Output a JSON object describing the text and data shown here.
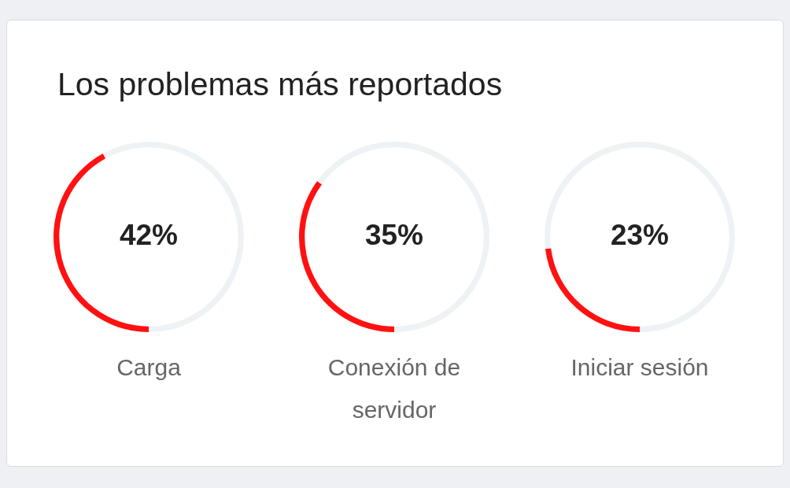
{
  "chart_data": [
    {
      "type": "donut",
      "title": "Los problemas más reportados",
      "categories": [
        "Carga",
        null
      ],
      "values": [
        42,
        58
      ],
      "colors": [
        "#ff1111",
        "#eef2f5"
      ],
      "annotations": [
        "42%"
      ]
    },
    {
      "type": "donut",
      "categories": [
        "Conexión de servidor",
        null
      ],
      "values": [
        35,
        65
      ],
      "colors": [
        "#ff1111",
        "#eef2f5"
      ],
      "annotations": [
        "35%"
      ]
    },
    {
      "type": "donut",
      "categories": [
        "Iniciar sesión",
        null
      ],
      "values": [
        23,
        77
      ],
      "colors": [
        "#ff1111",
        "#eef2f5"
      ],
      "annotations": [
        "23%"
      ]
    }
  ]
}
